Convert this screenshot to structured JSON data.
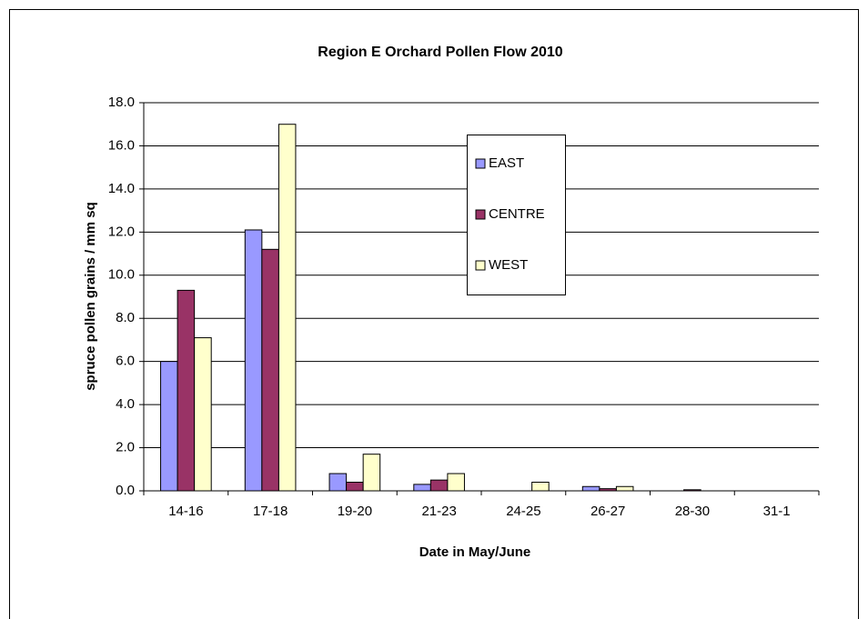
{
  "chart_data": {
    "type": "bar",
    "title": "Region E Orchard Pollen Flow 2010",
    "x_label": "Date in May/June",
    "y_label": "spruce pollen grains / mm sq",
    "categories": [
      "14-16",
      "17-18",
      "19-20",
      "21-23",
      "24-25",
      "26-27",
      "28-30",
      "31-1"
    ],
    "series": [
      {
        "name": "EAST",
        "color": "#9999ff",
        "values": [
          6.0,
          12.1,
          0.8,
          0.3,
          0,
          0.2,
          0,
          0
        ]
      },
      {
        "name": "CENTRE",
        "color": "#993366",
        "values": [
          9.3,
          11.2,
          0.4,
          0.5,
          0,
          0.1,
          0.05,
          0
        ]
      },
      {
        "name": "WEST",
        "color": "#ffffcc",
        "values": [
          7.1,
          17.0,
          1.7,
          0.8,
          0.4,
          0.2,
          0,
          0
        ]
      }
    ],
    "ylim": [
      0,
      18
    ],
    "yticks": [
      {
        "value": 0,
        "label": "0.0"
      },
      {
        "value": 2,
        "label": "2.0"
      },
      {
        "value": 4,
        "label": "4.0"
      },
      {
        "value": 6,
        "label": "6.0"
      },
      {
        "value": 8,
        "label": "8.0"
      },
      {
        "value": 10,
        "label": "10.0"
      },
      {
        "value": 12,
        "label": "12.0"
      },
      {
        "value": 14,
        "label": "14.0"
      },
      {
        "value": 16,
        "label": "16.0"
      },
      {
        "value": 18,
        "label": "18.0"
      }
    ],
    "grid": true,
    "legend": "upper-center"
  }
}
